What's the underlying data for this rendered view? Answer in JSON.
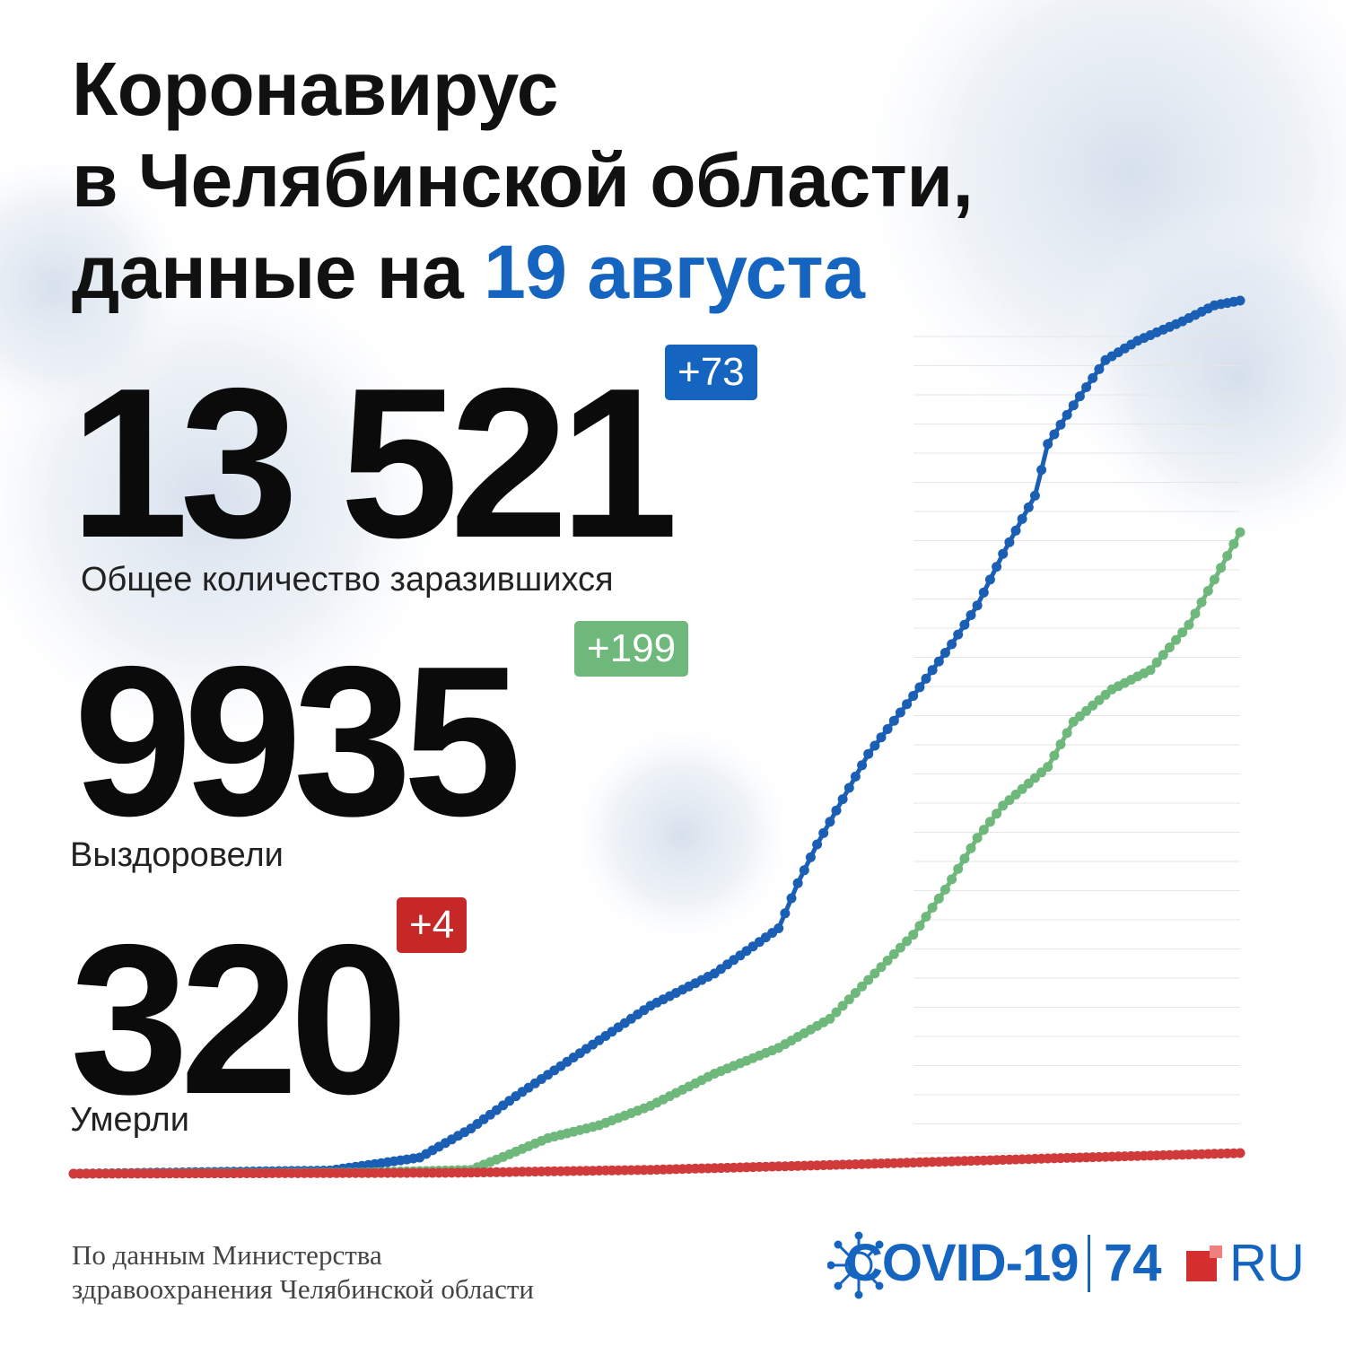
{
  "title": {
    "line1": "Коронавирус",
    "line2": "в Челябинской области,",
    "line3_prefix": "данные на ",
    "line3_date": "19 августа"
  },
  "stats": {
    "infected": {
      "value": "13 521",
      "delta": "+73",
      "label": "Общее количество заразившихся"
    },
    "recovered": {
      "value": "9935",
      "delta": "+199",
      "label": "Выздоровели"
    },
    "deaths": {
      "value": "320",
      "delta": "+4",
      "label": "Умерли"
    }
  },
  "source": {
    "line1": "По данным Министерства",
    "line2": "здравоохранения Челябинской области"
  },
  "brand": {
    "covid": "COVID-19",
    "number": "74",
    "ru": "RU"
  },
  "colors": {
    "infected": "#1a5fb4",
    "recovered": "#6db87a",
    "deaths": "#d03a3a",
    "accent": "#1565c0"
  },
  "icons": [
    "virus-icon",
    "logo-square-icon"
  ],
  "chart_data": {
    "type": "line",
    "title": "",
    "xlabel": "",
    "ylabel": "",
    "x_unit": "day",
    "ylim": [
      0,
      13521
    ],
    "grid": true,
    "series": [
      {
        "key": "infected",
        "x": [
          0,
          40,
          54,
          62,
          69,
          78,
          90,
          100,
          110,
          113,
          116,
          120,
          124,
          131,
          137,
          141,
          145,
          150,
          152,
          156,
          161,
          166,
          173,
          178,
          182
        ],
        "values": [
          0,
          50,
          250,
          700,
          1200,
          1800,
          2600,
          3100,
          3800,
          4500,
          5100,
          5800,
          6500,
          7400,
          8200,
          8800,
          9600,
          10500,
          11300,
          11900,
          12600,
          12900,
          13200,
          13448,
          13521
        ]
      },
      {
        "key": "recovered",
        "x": [
          0,
          45,
          62,
          68,
          74,
          82,
          90,
          100,
          110,
          118,
          124,
          131,
          136,
          141,
          145,
          152,
          156,
          162,
          168,
          174,
          178,
          182
        ],
        "values": [
          0,
          20,
          60,
          300,
          550,
          750,
          1050,
          1550,
          1950,
          2400,
          3000,
          3700,
          4400,
          5200,
          5700,
          6300,
          7000,
          7500,
          7800,
          8500,
          9200,
          9935
        ]
      },
      {
        "key": "deaths",
        "x": [
          0,
          60,
          90,
          120,
          150,
          182
        ],
        "values": [
          0,
          15,
          60,
          140,
          230,
          320
        ]
      }
    ]
  }
}
